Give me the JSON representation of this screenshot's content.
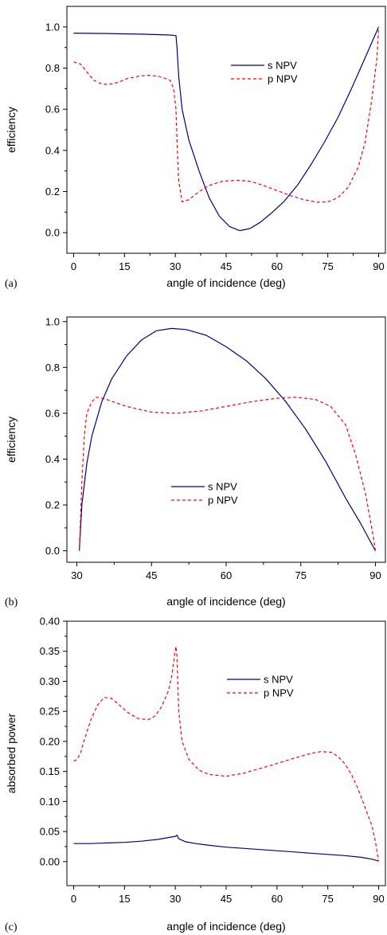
{
  "colors": {
    "s": "#000080",
    "p": "#ff0000"
  },
  "chart_data": [
    {
      "type": "line",
      "panel_label": "(a)",
      "xlabel": "angle of incidence (deg)",
      "ylabel": "efficiency",
      "xlim": [
        -2,
        92
      ],
      "ylim": [
        -0.1,
        1.1
      ],
      "xticks": [
        0,
        15,
        30,
        45,
        60,
        75,
        90
      ],
      "yticks": [
        0.0,
        0.2,
        0.4,
        0.6,
        0.8,
        1.0
      ],
      "ytick_labels": [
        "0.0",
        "0.2",
        "0.4",
        "0.6",
        "0.8",
        "1.0"
      ],
      "legend": "top-right",
      "series": [
        {
          "name": "s NPV",
          "style": "solid",
          "x": [
            0,
            10,
            20,
            28,
            30.2,
            30.5,
            31,
            32,
            34,
            37,
            40,
            43,
            46,
            49,
            52,
            55,
            58,
            62,
            66,
            70,
            74,
            78,
            82,
            86,
            90
          ],
          "y": [
            0.97,
            0.968,
            0.965,
            0.961,
            0.958,
            0.9,
            0.76,
            0.6,
            0.45,
            0.3,
            0.17,
            0.08,
            0.03,
            0.01,
            0.02,
            0.05,
            0.09,
            0.15,
            0.23,
            0.33,
            0.44,
            0.56,
            0.7,
            0.85,
            1.0
          ]
        },
        {
          "name": "p NPV",
          "style": "dashed",
          "x": [
            0,
            2,
            4,
            6,
            8,
            10,
            13,
            16,
            19,
            22,
            25,
            27,
            28.5,
            29.5,
            30.2,
            30.5,
            31,
            32,
            34,
            37,
            40,
            44,
            48,
            52,
            56,
            60,
            64,
            68,
            72,
            75,
            78,
            81,
            84,
            86,
            88,
            89.5,
            90
          ],
          "y": [
            0.83,
            0.82,
            0.78,
            0.74,
            0.725,
            0.72,
            0.73,
            0.75,
            0.76,
            0.765,
            0.76,
            0.75,
            0.74,
            0.7,
            0.6,
            0.45,
            0.25,
            0.15,
            0.16,
            0.2,
            0.23,
            0.25,
            0.255,
            0.25,
            0.23,
            0.205,
            0.18,
            0.16,
            0.148,
            0.15,
            0.17,
            0.22,
            0.32,
            0.44,
            0.65,
            0.85,
            1.0
          ]
        }
      ]
    },
    {
      "type": "line",
      "panel_label": "(b)",
      "xlabel": "angle of incidence (deg)",
      "ylabel": "efficiency",
      "xlim": [
        28,
        92
      ],
      "ylim": [
        -0.05,
        1.02
      ],
      "xticks": [
        30,
        45,
        60,
        75,
        90
      ],
      "yticks": [
        0.0,
        0.2,
        0.4,
        0.6,
        0.8,
        1.0
      ],
      "ytick_labels": [
        "0.0",
        "0.2",
        "0.4",
        "0.6",
        "0.8",
        "1.0"
      ],
      "legend": "center",
      "series": [
        {
          "name": "s NPV",
          "style": "solid",
          "x": [
            30.5,
            31,
            32,
            33,
            35,
            37,
            40,
            43,
            46,
            49,
            52,
            56,
            60,
            64,
            68,
            72,
            76,
            80,
            84,
            87,
            90
          ],
          "y": [
            0.0,
            0.2,
            0.38,
            0.5,
            0.65,
            0.75,
            0.85,
            0.92,
            0.96,
            0.97,
            0.965,
            0.94,
            0.89,
            0.83,
            0.75,
            0.65,
            0.53,
            0.39,
            0.23,
            0.12,
            0.0
          ]
        },
        {
          "name": "p NPV",
          "style": "dashed",
          "x": [
            30.5,
            31,
            31.5,
            32,
            33,
            34,
            36,
            40,
            45,
            50,
            55,
            60,
            65,
            70,
            74,
            78,
            81,
            84,
            86,
            88,
            89.5,
            90
          ],
          "y": [
            0.0,
            0.3,
            0.5,
            0.6,
            0.65,
            0.67,
            0.66,
            0.63,
            0.605,
            0.6,
            0.61,
            0.63,
            0.65,
            0.665,
            0.67,
            0.66,
            0.63,
            0.55,
            0.42,
            0.25,
            0.07,
            0.0
          ]
        }
      ]
    },
    {
      "type": "line",
      "panel_label": "(c)",
      "xlabel": "angle of incidence (deg)",
      "ylabel": "absorbed power",
      "xlim": [
        -2,
        92
      ],
      "ylim": [
        -0.04,
        0.4
      ],
      "xticks": [
        0,
        15,
        30,
        45,
        60,
        75,
        90
      ],
      "yticks": [
        0.0,
        0.05,
        0.1,
        0.15,
        0.2,
        0.25,
        0.3,
        0.35,
        0.4
      ],
      "ytick_labels": [
        "0.00",
        "0.05",
        "0.10",
        "0.15",
        "0.20",
        "0.25",
        "0.30",
        "0.35",
        "0.40"
      ],
      "legend": "top-right",
      "series": [
        {
          "name": "s NPV",
          "style": "solid",
          "x": [
            0,
            5,
            10,
            15,
            20,
            25,
            28,
            30,
            30.5,
            31,
            33,
            36,
            40,
            45,
            50,
            55,
            60,
            65,
            70,
            75,
            80,
            85,
            88,
            90
          ],
          "y": [
            0.03,
            0.03,
            0.031,
            0.032,
            0.034,
            0.037,
            0.04,
            0.042,
            0.044,
            0.038,
            0.033,
            0.03,
            0.027,
            0.024,
            0.022,
            0.02,
            0.018,
            0.016,
            0.014,
            0.012,
            0.01,
            0.007,
            0.004,
            0.001
          ]
        },
        {
          "name": "p NPV",
          "style": "dashed",
          "x": [
            0,
            1,
            2,
            3,
            5,
            7,
            9,
            11,
            13,
            16,
            19,
            22,
            24,
            26,
            28,
            29,
            29.8,
            30.2,
            30.5,
            31,
            32,
            34,
            37,
            40,
            45,
            50,
            55,
            60,
            65,
            70,
            73,
            76,
            78,
            80,
            82,
            84,
            86,
            88,
            89,
            90
          ],
          "y": [
            0.167,
            0.17,
            0.18,
            0.2,
            0.235,
            0.26,
            0.273,
            0.272,
            0.263,
            0.248,
            0.238,
            0.236,
            0.242,
            0.258,
            0.285,
            0.31,
            0.345,
            0.358,
            0.34,
            0.25,
            0.2,
            0.17,
            0.152,
            0.145,
            0.142,
            0.147,
            0.155,
            0.163,
            0.172,
            0.18,
            0.183,
            0.182,
            0.175,
            0.163,
            0.145,
            0.12,
            0.09,
            0.06,
            0.035,
            0.0
          ]
        }
      ]
    }
  ]
}
